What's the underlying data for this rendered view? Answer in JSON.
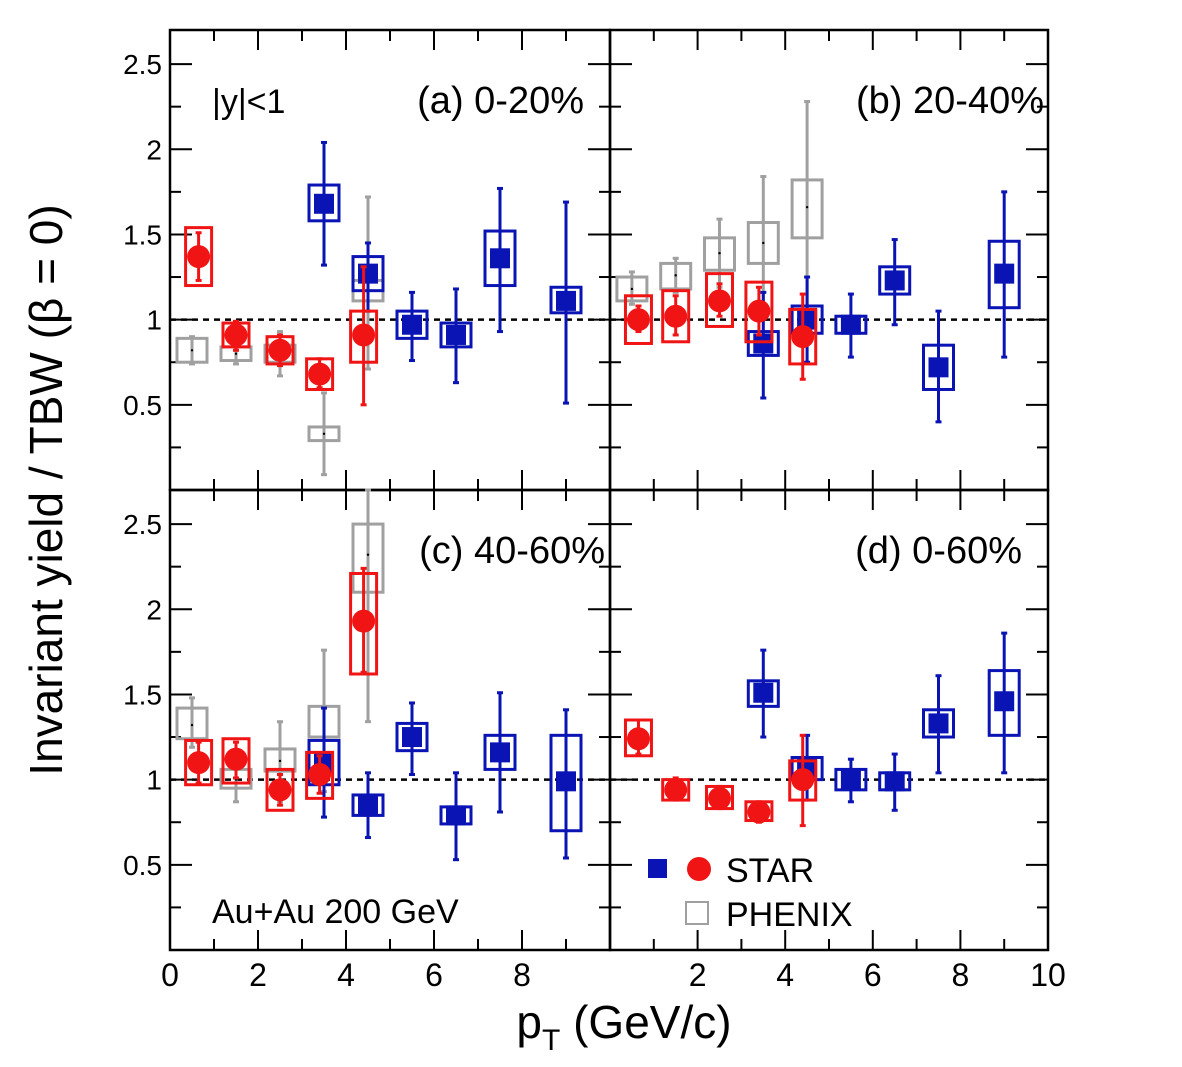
{
  "figure": {
    "ylabel": "Invariant yield / TBW (β = 0)",
    "xlabel_main": "p",
    "xlabel_sub": "T",
    "xlabel_rest": " (GeV/c)",
    "rapidity_label": "|y|<1",
    "system_label": "Au+Au 200 GeV",
    "legend": {
      "star": "STAR",
      "phenix": "PHENIX"
    },
    "colors": {
      "star_meson": "#0a14b4",
      "star_baryon": "#f01414",
      "phenix": "#a0a0a0",
      "reference_line": "#000000"
    }
  },
  "chart_data": [
    {
      "type": "scatter",
      "title": "(a) 0-20%",
      "xlim": [
        0,
        10
      ],
      "ylim": [
        0,
        2.7
      ],
      "xticks": [
        0,
        2,
        4,
        6,
        8
      ],
      "yticks": [
        "0.5",
        "1",
        "1.5",
        "2",
        "2.5"
      ],
      "reference_y": 1,
      "series": [
        {
          "name": "STAR",
          "marker": "filled-square",
          "color": "#0a14b4",
          "points": [
            {
              "x": 3.5,
              "y": 1.68,
              "stat": [
                1.32,
                2.04
              ],
              "sys": [
                1.58,
                1.79
              ]
            },
            {
              "x": 4.5,
              "y": 1.27,
              "stat": [
                1.05,
                1.45
              ],
              "sys": [
                1.17,
                1.37
              ]
            },
            {
              "x": 5.5,
              "y": 0.97,
              "stat": [
                0.76,
                1.16
              ],
              "sys": [
                0.89,
                1.05
              ]
            },
            {
              "x": 6.5,
              "y": 0.91,
              "stat": [
                0.63,
                1.18
              ],
              "sys": [
                0.84,
                0.98
              ]
            },
            {
              "x": 7.5,
              "y": 1.36,
              "stat": [
                0.93,
                1.77
              ],
              "sys": [
                1.2,
                1.52
              ]
            },
            {
              "x": 9.0,
              "y": 1.11,
              "stat": [
                0.51,
                1.69
              ],
              "sys": [
                1.04,
                1.19
              ]
            }
          ]
        },
        {
          "name": "STAR",
          "marker": "filled-circle",
          "color": "#f01414",
          "points": [
            {
              "x": 0.65,
              "y": 1.37,
              "stat": [
                1.23,
                1.51
              ],
              "sys": [
                1.2,
                1.54
              ]
            },
            {
              "x": 1.5,
              "y": 0.91,
              "stat": [
                0.82,
                0.99
              ],
              "sys": [
                0.84,
                0.98
              ]
            },
            {
              "x": 2.5,
              "y": 0.82,
              "stat": [
                0.73,
                0.91
              ],
              "sys": [
                0.74,
                0.9
              ]
            },
            {
              "x": 3.4,
              "y": 0.68,
              "stat": [
                0.6,
                0.77
              ],
              "sys": [
                0.59,
                0.77
              ]
            },
            {
              "x": 4.4,
              "y": 0.91,
              "stat": [
                0.5,
                1.31
              ],
              "sys": [
                0.75,
                1.05
              ]
            }
          ]
        },
        {
          "name": "PHENIX",
          "marker": "open-square",
          "color": "#a0a0a0",
          "points": [
            {
              "x": 0.5,
              "y": 0.82,
              "stat": [
                0.74,
                0.9
              ],
              "sys": [
                0.75,
                0.89
              ]
            },
            {
              "x": 1.5,
              "y": 0.8,
              "stat": [
                0.74,
                0.86
              ],
              "sys": [
                0.76,
                0.84
              ]
            },
            {
              "x": 2.5,
              "y": 0.8,
              "stat": [
                0.67,
                0.93
              ],
              "sys": [
                0.75,
                0.85
              ]
            },
            {
              "x": 3.5,
              "y": 0.33,
              "stat": [
                0.09,
                0.57
              ],
              "sys": [
                0.29,
                0.37
              ]
            },
            {
              "x": 4.5,
              "y": 1.17,
              "stat": [
                0.71,
                1.72
              ],
              "sys": [
                1.11,
                1.23
              ]
            }
          ]
        }
      ]
    },
    {
      "type": "scatter",
      "title": "(b) 20-40%",
      "xlim": [
        0,
        10
      ],
      "ylim": [
        0,
        2.7
      ],
      "xticks": [
        2,
        4,
        6,
        8
      ],
      "reference_y": 1,
      "series": [
        {
          "name": "STAR",
          "marker": "filled-square",
          "color": "#0a14b4",
          "points": [
            {
              "x": 3.5,
              "y": 0.86,
              "stat": [
                0.54,
                1.16
              ],
              "sys": [
                0.79,
                0.93
              ]
            },
            {
              "x": 4.5,
              "y": 1.0,
              "stat": [
                0.75,
                1.25
              ],
              "sys": [
                0.92,
                1.08
              ]
            },
            {
              "x": 5.5,
              "y": 0.97,
              "stat": [
                0.78,
                1.15
              ],
              "sys": [
                0.92,
                1.02
              ]
            },
            {
              "x": 6.5,
              "y": 1.23,
              "stat": [
                0.97,
                1.47
              ],
              "sys": [
                1.15,
                1.31
              ]
            },
            {
              "x": 7.5,
              "y": 0.72,
              "stat": [
                0.4,
                1.05
              ],
              "sys": [
                0.59,
                0.85
              ]
            },
            {
              "x": 9.0,
              "y": 1.27,
              "stat": [
                0.78,
                1.75
              ],
              "sys": [
                1.07,
                1.46
              ]
            }
          ]
        },
        {
          "name": "STAR",
          "marker": "filled-circle",
          "color": "#f01414",
          "points": [
            {
              "x": 0.65,
              "y": 1.0,
              "stat": [
                0.93,
                1.08
              ],
              "sys": [
                0.86,
                1.14
              ]
            },
            {
              "x": 1.5,
              "y": 1.02,
              "stat": [
                0.91,
                1.14
              ],
              "sys": [
                0.87,
                1.17
              ]
            },
            {
              "x": 2.5,
              "y": 1.11,
              "stat": [
                1.02,
                1.21
              ],
              "sys": [
                0.96,
                1.27
              ]
            },
            {
              "x": 3.4,
              "y": 1.05,
              "stat": [
                0.91,
                1.19
              ],
              "sys": [
                0.87,
                1.22
              ]
            },
            {
              "x": 4.4,
              "y": 0.9,
              "stat": [
                0.65,
                1.15
              ],
              "sys": [
                0.74,
                1.06
              ]
            }
          ]
        },
        {
          "name": "PHENIX",
          "marker": "open-square",
          "color": "#a0a0a0",
          "points": [
            {
              "x": 0.5,
              "y": 1.18,
              "stat": [
                1.09,
                1.28
              ],
              "sys": [
                1.11,
                1.25
              ]
            },
            {
              "x": 1.5,
              "y": 1.26,
              "stat": [
                1.16,
                1.36
              ],
              "sys": [
                1.18,
                1.33
              ]
            },
            {
              "x": 2.5,
              "y": 1.39,
              "stat": [
                1.19,
                1.59
              ],
              "sys": [
                1.29,
                1.48
              ]
            },
            {
              "x": 3.5,
              "y": 1.45,
              "stat": [
                1.07,
                1.84
              ],
              "sys": [
                1.33,
                1.57
              ]
            },
            {
              "x": 4.5,
              "y": 1.66,
              "stat": [
                1.03,
                2.28
              ],
              "sys": [
                1.48,
                1.82
              ]
            }
          ]
        }
      ]
    },
    {
      "type": "scatter",
      "title": "(c) 40-60%",
      "xlim": [
        0,
        10
      ],
      "ylim": [
        0,
        2.7
      ],
      "xticks": [
        0,
        2,
        4,
        6,
        8
      ],
      "xticklabels": [
        "0",
        "2",
        "4",
        "6",
        "8"
      ],
      "yticks": [
        "0.5",
        "1",
        "1.5",
        "2",
        "2.5"
      ],
      "reference_y": 1,
      "series": [
        {
          "name": "STAR",
          "marker": "filled-square",
          "color": "#0a14b4",
          "points": [
            {
              "x": 3.5,
              "y": 1.1,
              "stat": [
                0.78,
                1.42
              ],
              "sys": [
                0.97,
                1.23
              ]
            },
            {
              "x": 4.5,
              "y": 0.85,
              "stat": [
                0.66,
                1.04
              ],
              "sys": [
                0.79,
                0.91
              ]
            },
            {
              "x": 5.5,
              "y": 1.25,
              "stat": [
                1.03,
                1.45
              ],
              "sys": [
                1.17,
                1.33
              ]
            },
            {
              "x": 6.5,
              "y": 0.79,
              "stat": [
                0.53,
                1.04
              ],
              "sys": [
                0.74,
                0.84
              ]
            },
            {
              "x": 7.5,
              "y": 1.16,
              "stat": [
                0.81,
                1.51
              ],
              "sys": [
                1.06,
                1.26
              ]
            },
            {
              "x": 9.0,
              "y": 0.99,
              "stat": [
                0.54,
                1.41
              ],
              "sys": [
                0.7,
                1.26
              ]
            }
          ]
        },
        {
          "name": "STAR",
          "marker": "filled-circle",
          "color": "#f01414",
          "points": [
            {
              "x": 0.65,
              "y": 1.1,
              "stat": [
                0.98,
                1.22
              ],
              "sys": [
                0.97,
                1.23
              ]
            },
            {
              "x": 1.5,
              "y": 1.12,
              "stat": [
                1.01,
                1.22
              ],
              "sys": [
                0.98,
                1.24
              ]
            },
            {
              "x": 2.5,
              "y": 0.94,
              "stat": [
                0.85,
                1.03
              ],
              "sys": [
                0.82,
                1.06
              ]
            },
            {
              "x": 3.4,
              "y": 1.03,
              "stat": [
                0.92,
                1.14
              ],
              "sys": [
                0.89,
                1.16
              ]
            },
            {
              "x": 4.4,
              "y": 1.93,
              "stat": [
                1.63,
                2.24
              ],
              "sys": [
                1.62,
                2.21
              ]
            }
          ]
        },
        {
          "name": "PHENIX",
          "marker": "open-square",
          "color": "#a0a0a0",
          "points": [
            {
              "x": 0.5,
              "y": 1.32,
              "stat": [
                1.19,
                1.48
              ],
              "sys": [
                1.24,
                1.42
              ]
            },
            {
              "x": 1.5,
              "y": 1.0,
              "stat": [
                0.87,
                1.12
              ],
              "sys": [
                0.95,
                1.06
              ]
            },
            {
              "x": 2.5,
              "y": 1.11,
              "stat": [
                0.87,
                1.34
              ],
              "sys": [
                1.05,
                1.18
              ]
            },
            {
              "x": 3.5,
              "y": 1.35,
              "stat": [
                0.93,
                1.76
              ],
              "sys": [
                1.25,
                1.43
              ]
            },
            {
              "x": 4.5,
              "y": 2.32,
              "stat": [
                1.34,
                2.7
              ],
              "sys": [
                2.1,
                2.5
              ]
            }
          ]
        }
      ]
    },
    {
      "type": "scatter",
      "title": "(d) 0-60%",
      "xlim": [
        0,
        10
      ],
      "ylim": [
        0,
        2.7
      ],
      "xticks": [
        2,
        4,
        6,
        8,
        10
      ],
      "xticklabels": [
        "2",
        "4",
        "6",
        "8",
        "10"
      ],
      "reference_y": 1,
      "series": [
        {
          "name": "STAR",
          "marker": "filled-square",
          "color": "#0a14b4",
          "points": [
            {
              "x": 3.5,
              "y": 1.51,
              "stat": [
                1.25,
                1.76
              ],
              "sys": [
                1.43,
                1.58
              ]
            },
            {
              "x": 4.5,
              "y": 1.07,
              "stat": [
                0.88,
                1.26
              ],
              "sys": [
                1.0,
                1.13
              ]
            },
            {
              "x": 5.5,
              "y": 1.0,
              "stat": [
                0.87,
                1.12
              ],
              "sys": [
                0.94,
                1.06
              ]
            },
            {
              "x": 6.5,
              "y": 0.99,
              "stat": [
                0.82,
                1.15
              ],
              "sys": [
                0.94,
                1.04
              ]
            },
            {
              "x": 7.5,
              "y": 1.33,
              "stat": [
                1.04,
                1.61
              ],
              "sys": [
                1.25,
                1.41
              ]
            },
            {
              "x": 9.0,
              "y": 1.46,
              "stat": [
                1.04,
                1.86
              ],
              "sys": [
                1.26,
                1.64
              ]
            }
          ]
        },
        {
          "name": "STAR",
          "marker": "filled-circle",
          "color": "#f01414",
          "points": [
            {
              "x": 0.65,
              "y": 1.24,
              "stat": [
                1.15,
                1.35
              ],
              "sys": [
                1.14,
                1.35
              ]
            },
            {
              "x": 1.5,
              "y": 0.94,
              "stat": [
                0.88,
                1.01
              ],
              "sys": [
                0.88,
                1.0
              ]
            },
            {
              "x": 2.5,
              "y": 0.89,
              "stat": [
                0.83,
                0.96
              ],
              "sys": [
                0.83,
                0.96
              ]
            },
            {
              "x": 3.4,
              "y": 0.81,
              "stat": [
                0.75,
                0.87
              ],
              "sys": [
                0.76,
                0.87
              ]
            },
            {
              "x": 4.4,
              "y": 1.0,
              "stat": [
                0.73,
                1.26
              ],
              "sys": [
                0.88,
                1.11
              ]
            }
          ]
        }
      ]
    }
  ]
}
